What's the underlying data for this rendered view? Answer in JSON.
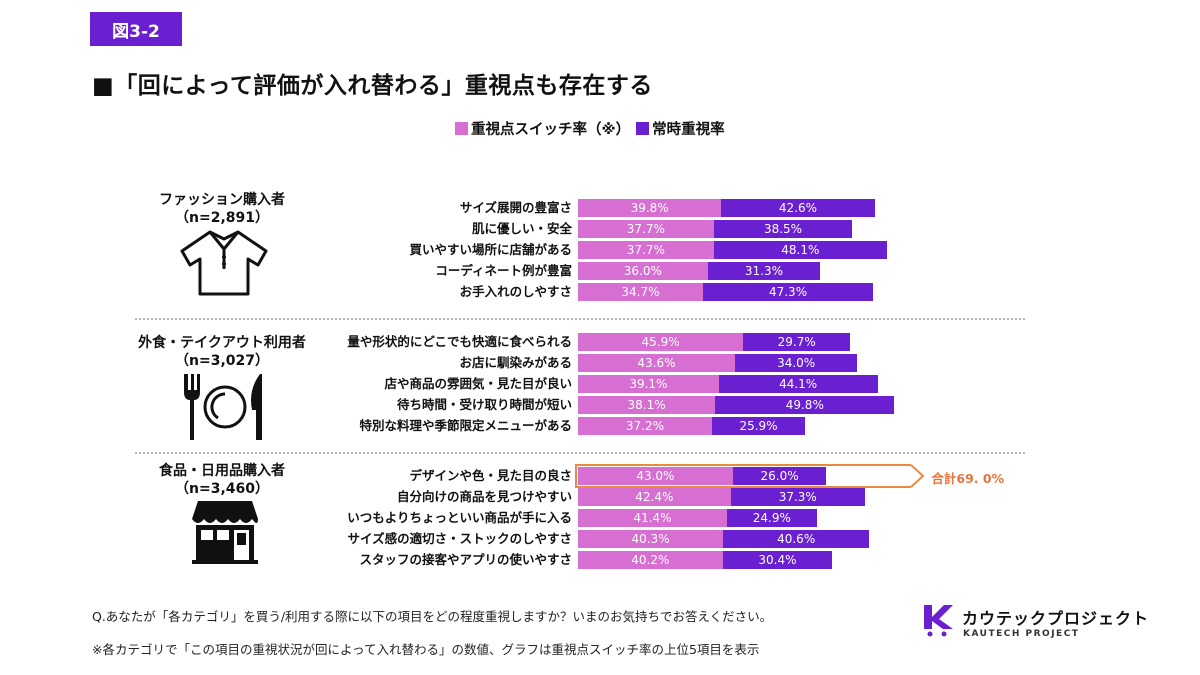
{
  "badge": "図3-2",
  "title": "■「回によって評価が入れ替わる」重視点も存在する",
  "colors": {
    "switch": "#d76fd2",
    "constant": "#6a1fd1",
    "highlight": "#e98b3d",
    "total_text": "#e8743b"
  },
  "chart_data": {
    "type": "bar",
    "orientation": "horizontal",
    "stacked": true,
    "legend": [
      {
        "name": "重視点スイッチ率（※）",
        "label": "重視点スイッチ率（※）",
        "color": "#d76fd2"
      },
      {
        "name": "常時重視率",
        "label": "常時重視率",
        "color": "#6a1fd1"
      }
    ],
    "legend_placement": "top-center",
    "groups": [
      {
        "name": "ファッション購入者",
        "n_label": "（n=2,891）",
        "icon": "shirt-icon",
        "rows": [
          {
            "label": "サイズ展開の豊富さ",
            "switch": 39.8,
            "constant": 42.6,
            "switch_label": "39.8%",
            "constant_label": "42.6%"
          },
          {
            "label": "肌に優しい・安全",
            "switch": 37.7,
            "constant": 38.5,
            "switch_label": "37.7%",
            "constant_label": "38.5%"
          },
          {
            "label": "買いやすい場所に店舗がある",
            "switch": 37.7,
            "constant": 48.1,
            "switch_label": "37.7%",
            "constant_label": "48.1%"
          },
          {
            "label": "コーディネート例が豊富",
            "switch": 36.0,
            "constant": 31.3,
            "switch_label": "36.0%",
            "constant_label": "31.3%"
          },
          {
            "label": "お手入れのしやすさ",
            "switch": 34.7,
            "constant": 47.3,
            "switch_label": "34.7%",
            "constant_label": "47.3%"
          }
        ]
      },
      {
        "name": "外食・テイクアウト利用者",
        "n_label": "（n=3,027）",
        "icon": "fork-plate-knife-icon",
        "rows": [
          {
            "label": "量や形状的にどこでも快適に食べられる",
            "switch": 45.9,
            "constant": 29.7,
            "switch_label": "45.9%",
            "constant_label": "29.7%"
          },
          {
            "label": "お店に馴染みがある",
            "switch": 43.6,
            "constant": 34.0,
            "switch_label": "43.6%",
            "constant_label": "34.0%"
          },
          {
            "label": "店や商品の雰囲気・見た目が良い",
            "switch": 39.1,
            "constant": 44.1,
            "switch_label": "39.1%",
            "constant_label": "44.1%"
          },
          {
            "label": "待ち時間・受け取り時間が短い",
            "switch": 38.1,
            "constant": 49.8,
            "switch_label": "38.1%",
            "constant_label": "49.8%"
          },
          {
            "label": "特別な料理や季節限定メニューがある",
            "switch": 37.2,
            "constant": 25.9,
            "switch_label": "37.2%",
            "constant_label": "25.9%"
          }
        ]
      },
      {
        "name": "食品・日用品購入者",
        "n_label": "（n=3,460）",
        "icon": "store-icon",
        "rows": [
          {
            "label": "デザインや色・見た目の良さ",
            "switch": 43.0,
            "constant": 26.0,
            "switch_label": "43.0%",
            "constant_label": "26.0%",
            "highlight_total": "合計69. 0%"
          },
          {
            "label": "自分向けの商品を見つけやすい",
            "switch": 42.4,
            "constant": 37.3,
            "switch_label": "42.4%",
            "constant_label": "37.3%"
          },
          {
            "label": "いつもよりちょっといい商品が手に入る",
            "switch": 41.4,
            "constant": 24.9,
            "switch_label": "41.4%",
            "constant_label": "24.9%"
          },
          {
            "label": "サイズ感の適切さ・ストックのしやすさ",
            "switch": 40.3,
            "constant": 40.6,
            "switch_label": "40.3%",
            "constant_label": "40.6%"
          },
          {
            "label": "スタッフの接客やアプリの使いやすさ",
            "switch": 40.2,
            "constant": 30.4,
            "switch_label": "40.2%",
            "constant_label": "30.4%"
          }
        ]
      }
    ]
  },
  "footnotes": {
    "question": "Q.あなたが「各カテゴリ」を買う/利用する際に以下の項目をどの程度重視しますか？いまのお気持ちでお答えください。",
    "note": "※各カテゴリで「この項目の重視状況が回によって入れ替わる」の数値、グラフは重視点スイッチ率の上位5項目を表示"
  },
  "logo": {
    "name": "カウテックプロジェクト",
    "sub": "KAUTECH PROJECT",
    "icon": "kautech-logo-icon"
  }
}
